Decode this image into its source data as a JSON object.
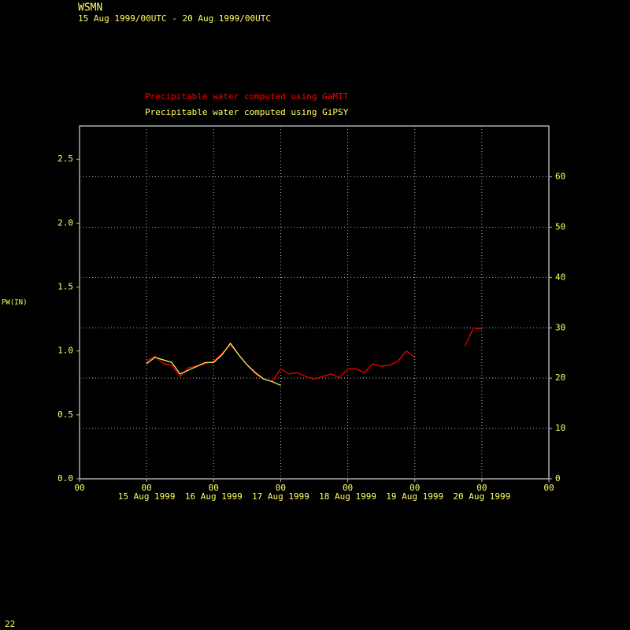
{
  "chart_data": {
    "type": "line",
    "title": "WSMN",
    "subtitle": "15 Aug 1999/00UTC - 20 Aug 1999/00UTC",
    "ylabel": "PW(IN)",
    "footer": "22",
    "x": [
      "1999-08-15T00",
      "1999-08-15T03",
      "1999-08-15T06",
      "1999-08-15T09",
      "1999-08-15T12",
      "1999-08-15T15",
      "1999-08-15T18",
      "1999-08-15T21",
      "1999-08-16T00",
      "1999-08-16T03",
      "1999-08-16T06",
      "1999-08-16T09",
      "1999-08-16T12",
      "1999-08-16T15",
      "1999-08-16T18",
      "1999-08-16T21",
      "1999-08-17T00",
      "1999-08-17T03",
      "1999-08-17T06",
      "1999-08-17T09",
      "1999-08-17T12",
      "1999-08-17T15",
      "1999-08-17T18",
      "1999-08-17T21",
      "1999-08-18T00",
      "1999-08-18T03",
      "1999-08-18T06",
      "1999-08-18T09",
      "1999-08-18T12",
      "1999-08-18T15",
      "1999-08-18T18",
      "1999-08-18T21",
      "1999-08-19T00",
      "1999-08-19T03",
      "1999-08-19T06",
      "1999-08-19T09",
      "1999-08-19T12",
      "1999-08-19T15",
      "1999-08-19T18",
      "1999-08-19T21",
      "1999-08-20T00"
    ],
    "series": [
      {
        "name": "Precipitable water computed using GaMIT",
        "color": "#ff0000",
        "values": [
          0.92,
          0.96,
          0.9,
          0.89,
          0.8,
          0.87,
          0.88,
          0.9,
          0.92,
          0.98,
          1.05,
          0.97,
          0.89,
          0.82,
          0.78,
          0.76,
          0.86,
          0.82,
          0.83,
          0.8,
          0.78,
          0.8,
          0.82,
          0.79,
          0.86,
          0.86,
          0.83,
          0.9,
          0.88,
          0.89,
          0.92,
          1.0,
          0.95,
          null,
          null,
          null,
          null,
          null,
          1.04,
          1.18,
          1.17
        ]
      },
      {
        "name": "Precipitable water computed using GiPSY",
        "color": "#ffff66",
        "values": [
          0.9,
          0.95,
          0.93,
          0.91,
          0.82,
          0.85,
          0.88,
          0.91,
          0.91,
          0.97,
          1.06,
          0.97,
          0.89,
          0.83,
          0.78,
          0.76,
          0.73,
          null,
          null,
          null,
          null,
          null,
          null,
          null,
          null,
          null,
          null,
          null,
          null,
          null,
          null,
          null,
          null,
          null,
          null,
          null,
          null,
          null,
          null,
          null,
          null
        ]
      }
    ],
    "xlim": [
      "1999-08-14T00",
      "1999-08-21T00"
    ],
    "xticks": [
      {
        "value": "1999-08-14T00",
        "label": "00"
      },
      {
        "value": "1999-08-15T00",
        "label": "00"
      },
      {
        "value": "1999-08-16T00",
        "label": "00"
      },
      {
        "value": "1999-08-17T00",
        "label": "00"
      },
      {
        "value": "1999-08-18T00",
        "label": "00"
      },
      {
        "value": "1999-08-19T00",
        "label": "00"
      },
      {
        "value": "1999-08-20T00",
        "label": "00"
      },
      {
        "value": "1999-08-21T00",
        "label": "00"
      }
    ],
    "x_day_labels": [
      {
        "value": "1999-08-15T00",
        "label": "15 Aug 1999"
      },
      {
        "value": "1999-08-16T00",
        "label": "16 Aug 1999"
      },
      {
        "value": "1999-08-17T00",
        "label": "17 Aug 1999"
      },
      {
        "value": "1999-08-18T00",
        "label": "18 Aug 1999"
      },
      {
        "value": "1999-08-19T00",
        "label": "19 Aug 1999"
      },
      {
        "value": "1999-08-20T00",
        "label": "20 Aug 1999"
      }
    ],
    "ylim": [
      0,
      2.76
    ],
    "yticks": [
      {
        "value": 0,
        "label": "0.0"
      },
      {
        "value": 0.5,
        "label": "0.5"
      },
      {
        "value": 1,
        "label": "1.0"
      },
      {
        "value": 1.5,
        "label": "1.5"
      },
      {
        "value": 2,
        "label": "2.0"
      },
      {
        "value": 2.5,
        "label": "2.5"
      }
    ],
    "y2lim": [
      0,
      70.1
    ],
    "y2ticks": [
      0,
      10,
      20,
      30,
      40,
      50,
      60
    ],
    "grid": true
  }
}
